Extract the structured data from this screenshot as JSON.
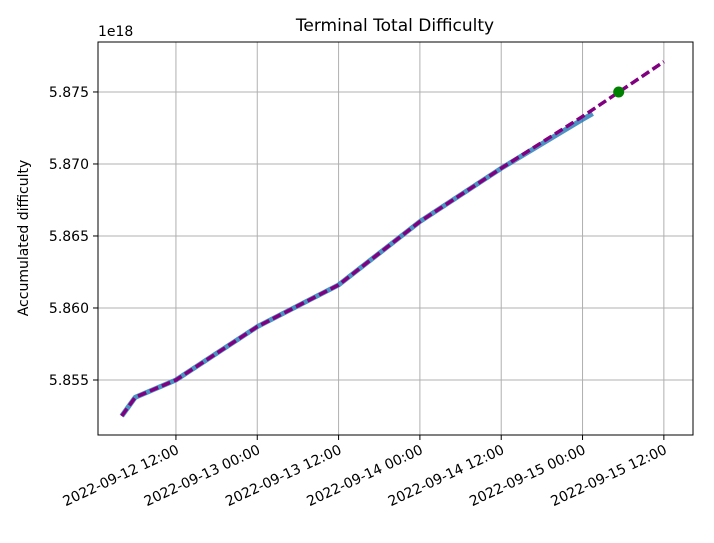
{
  "chart_data": {
    "type": "line",
    "title": "Terminal Total Difficulty",
    "y_label": "Accumulated difficulty",
    "y_offset_text": "1e18",
    "xlim": [
      "2022-09-12 00:30",
      "2022-09-15 16:18"
    ],
    "ylim": [
      5.85118,
      5.87847
    ],
    "xticks": [
      "2022-09-12 12:00",
      "2022-09-13 00:00",
      "2022-09-13 12:00",
      "2022-09-14 00:00",
      "2022-09-14 12:00",
      "2022-09-15 00:00",
      "2022-09-15 12:00"
    ],
    "yticks": [
      5.855,
      {
        "value": 5.86,
        "label": "5.860"
      },
      5.865,
      {
        "value": 5.87,
        "label": "5.870"
      },
      5.875
    ],
    "grid": true,
    "series": [
      {
        "color": "#1f77b4",
        "linestyle": "solid",
        "x": [
          "2022-09-12 04:00",
          "2022-09-12 06:00",
          "2022-09-12 12:00",
          "2022-09-13 00:00",
          "2022-09-13 12:00",
          "2022-09-14 00:00",
          "2022-09-14 12:00",
          "2022-09-15 00:00",
          "2022-09-15 01:30"
        ],
        "values": [
          5.8525,
          5.8538,
          5.855,
          5.8587,
          5.8616,
          5.866,
          5.8697,
          5.8731,
          5.8735
        ]
      },
      {
        "color": "#800080",
        "linestyle": "dashed",
        "x": [
          "2022-09-12 04:00",
          "2022-09-12 06:00",
          "2022-09-12 12:00",
          "2022-09-13 00:00",
          "2022-09-13 12:00",
          "2022-09-14 00:00",
          "2022-09-14 12:00",
          "2022-09-15 00:00",
          "2022-09-15 12:00"
        ],
        "values": [
          5.8525,
          5.8538,
          5.855,
          5.8587,
          5.8616,
          5.866,
          5.8697,
          5.8733,
          5.8771
        ]
      }
    ],
    "points": {
      "color": "#008000",
      "x": [
        "2022-09-15 05:20"
      ],
      "values": [
        5.875
      ]
    }
  }
}
